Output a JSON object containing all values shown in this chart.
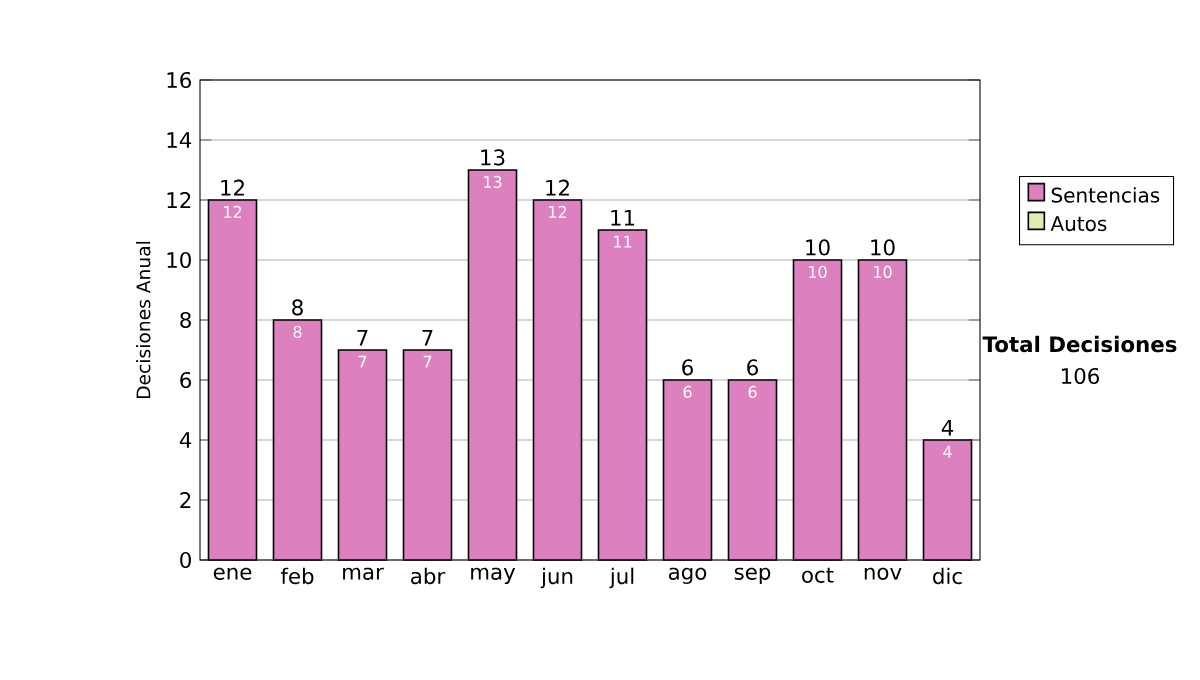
{
  "chart_data": {
    "type": "bar",
    "stacked": true,
    "ylabel": "Decisiones Anual",
    "categories": [
      "ene",
      "feb",
      "mar",
      "abr",
      "may",
      "jun",
      "jul",
      "ago",
      "sep",
      "oct",
      "nov",
      "dic"
    ],
    "series": [
      {
        "name": "Sentencias",
        "color": "#dd80c0",
        "values": [
          12,
          8,
          7,
          7,
          13,
          12,
          11,
          6,
          6,
          10,
          10,
          4
        ],
        "value_labels": [
          "12",
          "8",
          "7",
          "7",
          "13",
          "12",
          "11",
          "6",
          "6",
          "10",
          "10",
          "4"
        ]
      },
      {
        "name": "Autos",
        "color": "#dcedb0",
        "values": [
          0,
          0,
          0,
          0,
          0,
          0,
          0,
          0,
          0,
          0,
          0,
          0
        ]
      }
    ],
    "totals": [
      "12",
      "8",
      "7",
      "7",
      "13",
      "12",
      "11",
      "6",
      "6",
      "10",
      "10",
      "4"
    ],
    "ylim": [
      0,
      16
    ],
    "yticks": [
      0,
      2,
      4,
      6,
      8,
      10,
      12,
      14,
      16
    ],
    "grid": "y",
    "legend": "right",
    "annotations": [
      "Total Decisiones",
      "106"
    ]
  }
}
